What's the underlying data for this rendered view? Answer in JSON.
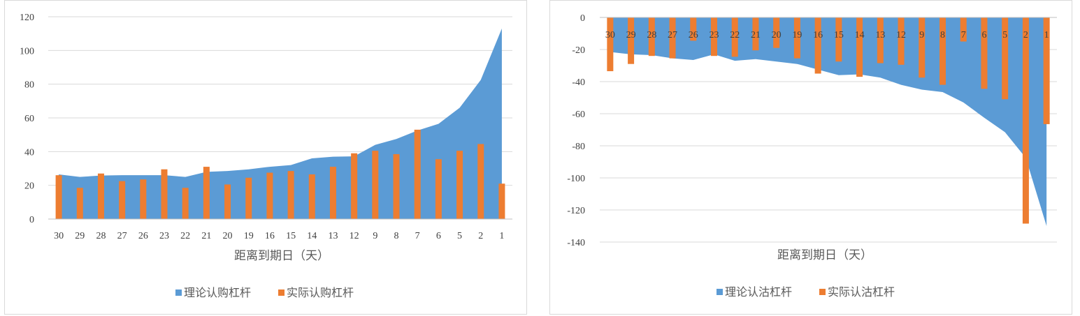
{
  "colors": {
    "theoretical": "#5b9bd5",
    "actual": "#ed7d31",
    "grid": "#d9d9d9",
    "text": "#595959"
  },
  "chart_data": [
    {
      "type": "bar",
      "overlay": "area",
      "categories": [
        "30",
        "29",
        "28",
        "27",
        "26",
        "23",
        "22",
        "21",
        "20",
        "19",
        "16",
        "15",
        "14",
        "13",
        "12",
        "9",
        "8",
        "7",
        "6",
        "5",
        "2",
        "1"
      ],
      "series": [
        {
          "name": "理论认购杠杆",
          "kind": "area",
          "values": [
            26.5,
            25,
            25.8,
            26,
            26,
            26,
            25,
            28,
            28.5,
            29.5,
            31,
            32,
            36,
            37,
            37.2,
            44,
            47.5,
            52.5,
            56.5,
            66,
            82.5,
            113
          ]
        },
        {
          "name": "实际认购杠杆",
          "kind": "bar",
          "values": [
            26,
            18.5,
            27,
            22.5,
            23.5,
            29.5,
            18.5,
            31,
            20.5,
            24.5,
            27.5,
            28.5,
            26.5,
            31,
            39,
            40.5,
            38.5,
            53,
            35.5,
            40.5,
            44.5,
            21
          ]
        }
      ],
      "xlabel": "距离到期日（天）",
      "ylabel": "",
      "ylim": [
        0,
        120
      ],
      "yticks": [
        "120",
        "100",
        "80",
        "60",
        "40",
        "20",
        "0"
      ],
      "legend_position": "bottom"
    },
    {
      "type": "bar",
      "overlay": "area",
      "categories": [
        "30",
        "29",
        "28",
        "27",
        "26",
        "23",
        "22",
        "21",
        "20",
        "19",
        "16",
        "15",
        "14",
        "13",
        "12",
        "9",
        "8",
        "7",
        "6",
        "5",
        "2",
        "1"
      ],
      "series": [
        {
          "name": "理论认沽杠杆",
          "kind": "area",
          "values": [
            -21.5,
            -23,
            -23.5,
            -25.5,
            -26.5,
            -23,
            -27,
            -26,
            -27.5,
            -29,
            -32.5,
            -36,
            -35.5,
            -37.5,
            -42,
            -45,
            -46.5,
            -53,
            -62.5,
            -71.5,
            -87.5,
            -130
          ]
        },
        {
          "name": "实际认沽杠杆",
          "kind": "bar",
          "values": [
            -33.5,
            -29,
            -24,
            -25.5,
            -14.5,
            -24,
            -24.5,
            -20.5,
            -19,
            -25.5,
            -35,
            -27.5,
            -37,
            -28.5,
            -29.5,
            -37.5,
            -42,
            -15,
            -44.5,
            -51,
            -128.5,
            -66.5
          ]
        }
      ],
      "xlabel": "距离到期日（天）",
      "ylabel": "",
      "ylim": [
        -140,
        0
      ],
      "yticks": [
        "0",
        "-20",
        "-40",
        "-60",
        "-80",
        "-100",
        "-120",
        "-140"
      ],
      "legend_position": "bottom"
    }
  ]
}
